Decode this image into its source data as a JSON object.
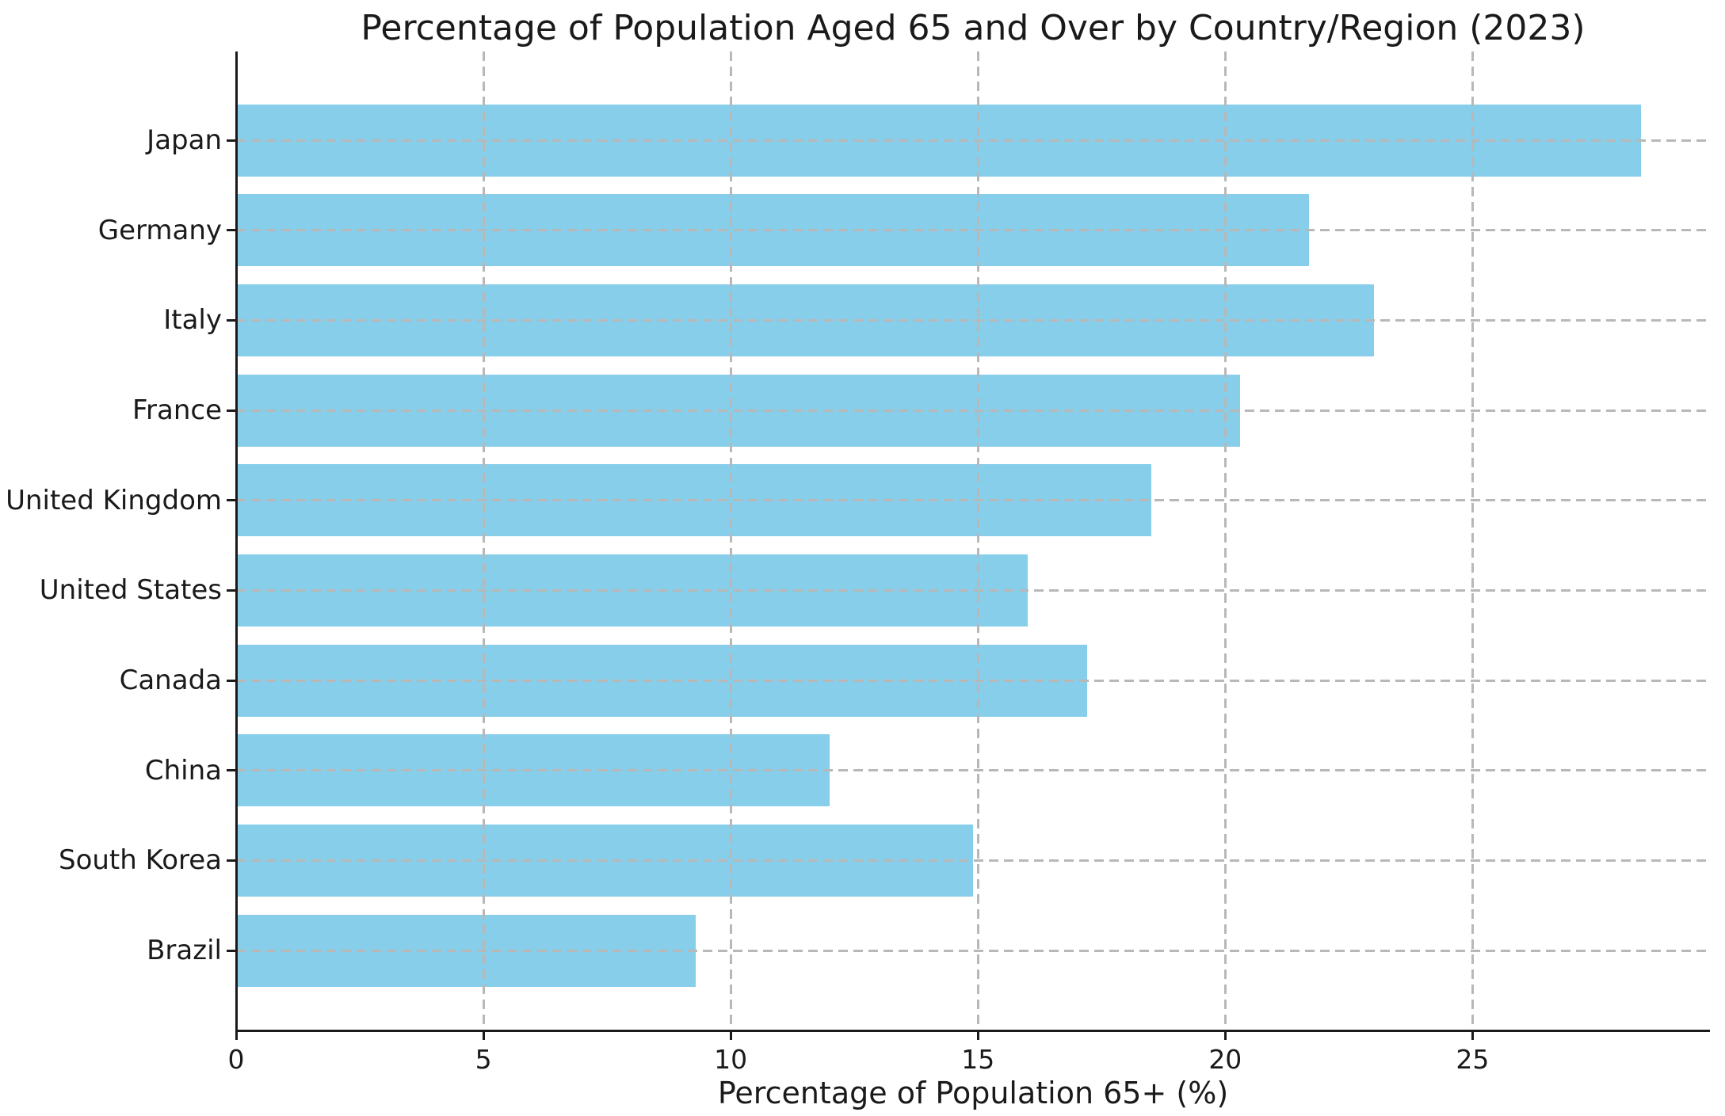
{
  "chart_data": {
    "type": "bar",
    "orientation": "horizontal",
    "title": "Percentage of Population Aged 65 and Over by Country/Region (2023)",
    "xlabel": "Percentage of Population 65+ (%)",
    "ylabel": "",
    "categories": [
      "Japan",
      "Germany",
      "Italy",
      "France",
      "United Kingdom",
      "United States",
      "Canada",
      "China",
      "South Korea",
      "Brazil"
    ],
    "values": [
      28.4,
      21.7,
      23.0,
      20.3,
      18.5,
      16.0,
      17.2,
      12.0,
      14.9,
      9.3
    ],
    "xticks": [
      0,
      5,
      10,
      15,
      20,
      25
    ],
    "xtick_labels": [
      "0",
      "5",
      "10",
      "15",
      "20",
      "25"
    ],
    "xlim": [
      0,
      29.8
    ],
    "bar_color": "#87CEEB",
    "grid": true,
    "grid_style": "dashed",
    "grid_color": "#b8b8b8",
    "grid_position": "above-bars",
    "legend_position": "none",
    "background_color": "#ffffff",
    "text_color": "#1a1a1a"
  }
}
